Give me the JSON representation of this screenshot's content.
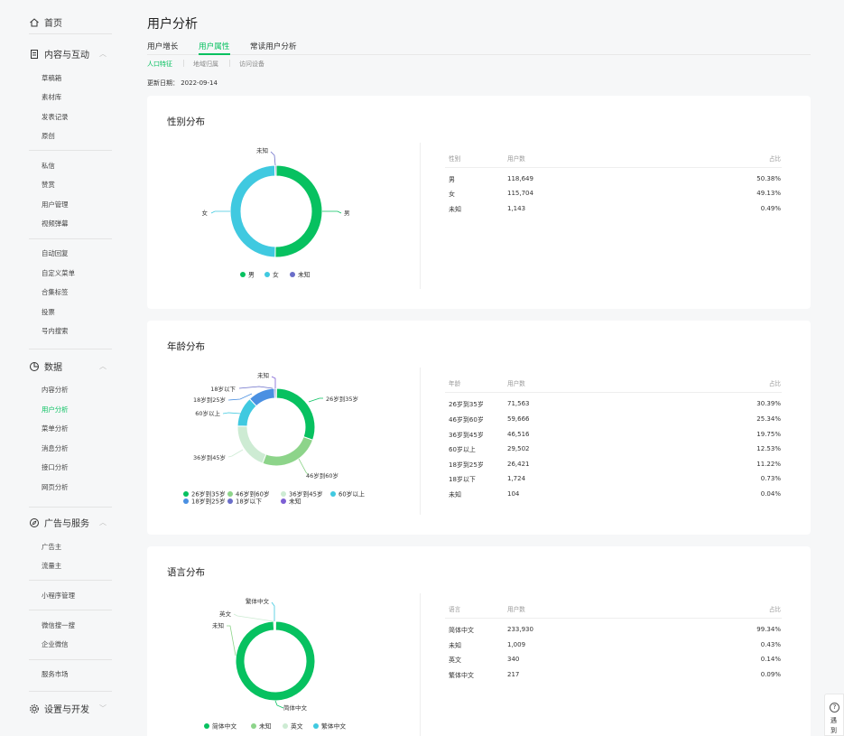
{
  "sidebar": {
    "home": "首页",
    "content": {
      "label": "内容与互动",
      "items": [
        "草稿箱",
        "素材库",
        "发表记录",
        "原创",
        "私信",
        "赞赏",
        "用户管理",
        "视频弹幕",
        "自动回复",
        "自定义菜单",
        "合集标签",
        "投票",
        "号内搜索"
      ]
    },
    "data": {
      "label": "数据",
      "items": [
        "内容分析",
        "用户分析",
        "菜单分析",
        "消息分析",
        "接口分析",
        "网页分析"
      ],
      "active_index": 1
    },
    "ads": {
      "label": "广告与服务",
      "items": [
        "广告主",
        "流量主",
        "小程序管理",
        "微信搜一搜",
        "企业微信",
        "服务市场"
      ]
    },
    "settings": {
      "label": "设置与开发"
    }
  },
  "page": {
    "title": "用户分析",
    "tabs": [
      "用户增长",
      "用户属性",
      "常读用户分析"
    ],
    "active_tab": 1,
    "subtabs": [
      "人口特征",
      "地域归属",
      "访问设备"
    ],
    "active_subtab": 0,
    "update_date": "更新日期： 2022-09-14"
  },
  "colors": {
    "accent": "#07c160",
    "cyan": "#40c9e0",
    "purple": "#6a6ec9",
    "green2": "#8dd48a",
    "lightgreen": "#cdebd3",
    "blue": "#4a90e2",
    "violet": "#7d5fd4"
  },
  "cards": {
    "gender": {
      "title": "性别分布",
      "headers": [
        "性别",
        "用户数",
        "占比"
      ],
      "rows": [
        [
          "男",
          "118,649",
          "50.38%"
        ],
        [
          "女",
          "115,704",
          "49.13%"
        ],
        [
          "未知",
          "1,143",
          "0.49%"
        ]
      ],
      "legend": [
        "男",
        "女",
        "未知"
      ]
    },
    "age": {
      "title": "年龄分布",
      "headers": [
        "年龄",
        "用户数",
        "占比"
      ],
      "rows": [
        [
          "26岁到35岁",
          "71,563",
          "30.39%"
        ],
        [
          "46岁到60岁",
          "59,666",
          "25.34%"
        ],
        [
          "36岁到45岁",
          "46,516",
          "19.75%"
        ],
        [
          "60岁以上",
          "29,502",
          "12.53%"
        ],
        [
          "18岁到25岁",
          "26,421",
          "11.22%"
        ],
        [
          "18岁以下",
          "1,724",
          "0.73%"
        ],
        [
          "未知",
          "104",
          "0.04%"
        ]
      ],
      "legend": [
        "26岁到35岁",
        "46岁到60岁",
        "36岁到45岁",
        "60岁以上",
        "18岁到25岁",
        "18岁以下",
        "未知"
      ]
    },
    "language": {
      "title": "语言分布",
      "headers": [
        "语言",
        "用户数",
        "占比"
      ],
      "rows": [
        [
          "简体中文",
          "233,930",
          "99.34%"
        ],
        [
          "未知",
          "1,009",
          "0.43%"
        ],
        [
          "英文",
          "340",
          "0.14%"
        ],
        [
          "繁体中文",
          "217",
          "0.09%"
        ]
      ],
      "legend": [
        "简体中文",
        "未知",
        "英文",
        "繁体中文"
      ]
    }
  },
  "chart_data": [
    {
      "type": "pie",
      "title": "性别分布",
      "categories": [
        "男",
        "女",
        "未知"
      ],
      "values": [
        50.38,
        49.13,
        0.49
      ],
      "colors": [
        "#07c160",
        "#40c9e0",
        "#6a6ec9"
      ]
    },
    {
      "type": "pie",
      "title": "年龄分布",
      "categories": [
        "26岁到35岁",
        "46岁到60岁",
        "36岁到45岁",
        "60岁以上",
        "18岁到25岁",
        "18岁以下",
        "未知"
      ],
      "values": [
        30.39,
        25.34,
        19.75,
        12.53,
        11.22,
        0.73,
        0.04
      ],
      "colors": [
        "#07c160",
        "#8dd48a",
        "#cdebd3",
        "#40c9e0",
        "#4a90e2",
        "#6a6ec9",
        "#7d5fd4"
      ]
    },
    {
      "type": "pie",
      "title": "语言分布",
      "categories": [
        "简体中文",
        "未知",
        "英文",
        "繁体中文"
      ],
      "values": [
        99.34,
        0.43,
        0.14,
        0.09
      ],
      "colors": [
        "#07c160",
        "#8dd48a",
        "#cdebd3",
        "#40c9e0"
      ]
    }
  ],
  "help": {
    "icon": "question-icon",
    "label": "遇到"
  }
}
